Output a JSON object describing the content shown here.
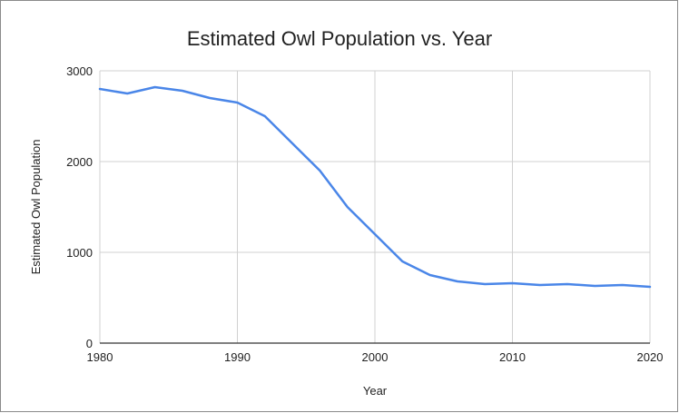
{
  "chart_data": {
    "type": "line",
    "title": "Estimated Owl Population vs. Year",
    "xlabel": "Year",
    "ylabel": "Estimated Owl Population",
    "xlim": [
      1980,
      2020
    ],
    "ylim": [
      0,
      3000
    ],
    "x_ticks": [
      "1980",
      "1990",
      "2000",
      "2010",
      "2020"
    ],
    "y_ticks": [
      "0",
      "1000",
      "2000",
      "3000"
    ],
    "grid": true,
    "legend": "none",
    "series": [
      {
        "color": "#4a86e8",
        "x": [
          1980,
          1982,
          1984,
          1986,
          1988,
          1990,
          1992,
          1994,
          1996,
          1998,
          2000,
          2002,
          2004,
          2006,
          2008,
          2010,
          2012,
          2014,
          2016,
          2018,
          2020
        ],
        "y": [
          2800,
          2750,
          2820,
          2780,
          2700,
          2650,
          2500,
          2200,
          1900,
          1500,
          1200,
          900,
          750,
          680,
          650,
          660,
          640,
          650,
          630,
          640,
          620
        ]
      }
    ]
  }
}
